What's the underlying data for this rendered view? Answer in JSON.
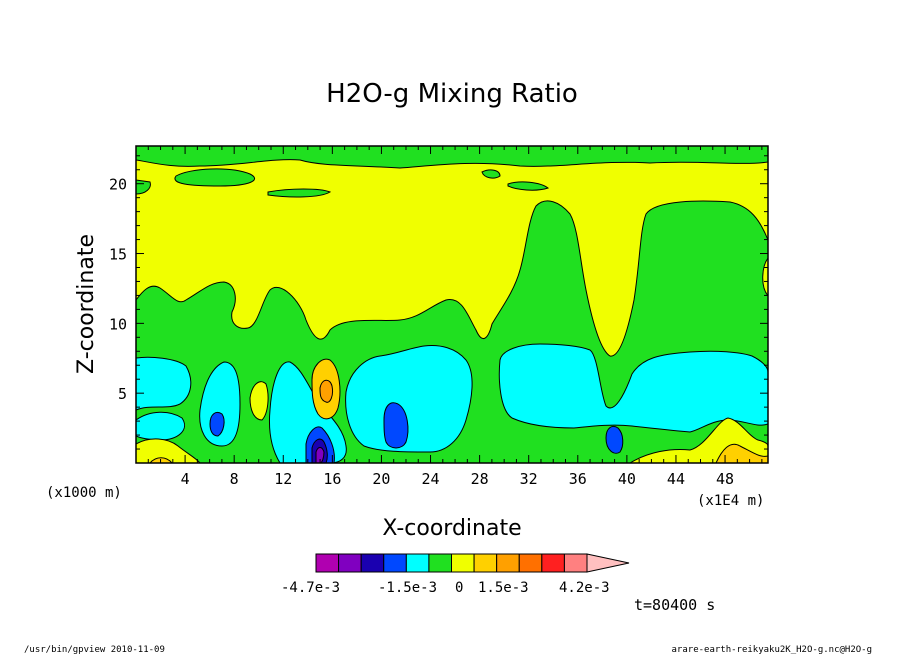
{
  "chart_data": {
    "type": "heatmap",
    "title": "H2O-g Mixing Ratio",
    "xlabel": "X-coordinate",
    "ylabel": "Z-coordinate",
    "x_unit_left": "(x1000 m)",
    "x_unit_right": "(x1E4 m)",
    "x_ticks": [
      "4",
      "8",
      "12",
      "16",
      "20",
      "24",
      "28",
      "32",
      "36",
      "40",
      "44",
      "48"
    ],
    "y_ticks": [
      "5",
      "10",
      "15",
      "20"
    ],
    "xlim": [
      0,
      51.5
    ],
    "ylim": [
      0,
      22.7
    ],
    "colorbar": {
      "labels": [
        "-4.7e-3",
        "-1.5e-3",
        "0",
        "1.5e-3",
        "4.2e-3"
      ],
      "colors": [
        "#b000b0",
        "#8000c0",
        "#1a00b0",
        "#0048ff",
        "#00ffff",
        "#20e020",
        "#f0ff00",
        "#ffd000",
        "#ffa000",
        "#ff7000",
        "#ff2020",
        "#ff8080",
        "#ffc0c0"
      ]
    },
    "regions": [
      {
        "level": "yellow",
        "color": "#f0ff00"
      },
      {
        "level": "green",
        "color": "#20e020"
      },
      {
        "level": "cyan",
        "color": "#00ffff"
      },
      {
        "level": "light-orange",
        "color": "#ffd000"
      },
      {
        "level": "orange",
        "color": "#ffa000"
      },
      {
        "level": "blue",
        "color": "#0048ff"
      },
      {
        "level": "dark-blue",
        "color": "#1a00b0"
      },
      {
        "level": "violet",
        "color": "#8000c0"
      }
    ]
  },
  "annotations": {
    "time": "t=80400 s",
    "footer_left": "/usr/bin/gpview   2010-11-09",
    "footer_right": "arare-earth-reikyaku2K_H2O-g.nc@H2O-g"
  }
}
